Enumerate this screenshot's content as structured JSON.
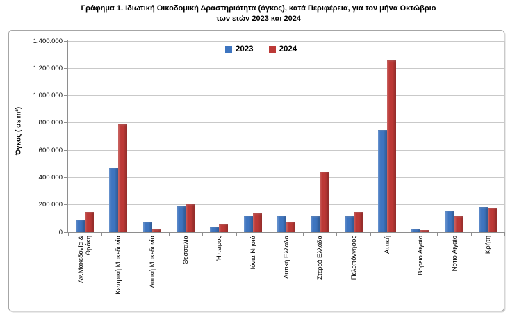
{
  "title": {
    "line1": "Γράφημα 1.  Ιδιωτική Οικοδομική Δραστηριότητα (όγκος), κατά Περιφέρεια, για τον μήνα Οκτώβριο",
    "line2": "των ετών 2023 και 2024"
  },
  "chart_data": {
    "type": "bar",
    "title": "Γράφημα 1. Ιδιωτική Οικοδομική Δραστηριότητα (όγκος), κατά Περιφέρεια, για τον μήνα Οκτώβριο των ετών 2023 και 2024",
    "ylabel": "Όγκος ( σε m³)",
    "xlabel": "",
    "ylim": [
      0,
      1400000
    ],
    "y_tick_step": 200000,
    "y_tick_labels_top_to_bottom": [
      "1.400.000",
      "1.200.000",
      "1.000.000",
      "800.000",
      "600.000",
      "400.000",
      "200.000",
      "0"
    ],
    "grid": true,
    "legend_position": "top-center-inside",
    "categories": [
      "Αν.Μακεδονία &\nΘράκη",
      "Κεντρική Μακεδονία",
      "Δυτική Μακεδονία",
      "Θεσσαλία",
      "Ήπειρος",
      "Ιόνια Νησιά",
      "Δυτική Ελλάδα",
      "Στερεά Ελλάδα",
      "Πελοπόννησος",
      "Αττική",
      "Βόρειο Αιγαίο",
      "Νότιο Αιγαίο",
      "Κρήτη"
    ],
    "series": [
      {
        "name": "2023",
        "color": "#3e75c0",
        "values": [
          90000,
          475000,
          75000,
          190000,
          40000,
          120000,
          120000,
          115000,
          115000,
          750000,
          25000,
          160000,
          185000
        ]
      },
      {
        "name": "2024",
        "color": "#bc3936",
        "values": [
          150000,
          790000,
          20000,
          205000,
          60000,
          140000,
          75000,
          445000,
          150000,
          1255000,
          15000,
          115000,
          178000
        ]
      }
    ]
  },
  "colors": {
    "bar_2023": "#3e75c0",
    "bar_2024": "#bc3936",
    "gridline": "#c9c9c9",
    "axis": "#8e8e8e",
    "frame_border": "#a6a6a6"
  }
}
